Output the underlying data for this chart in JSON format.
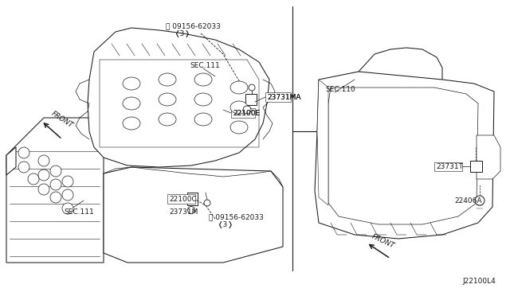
{
  "bg_color": "#ffffff",
  "line_color": "#1a1a1a",
  "diagram_id": "J22100L4",
  "labels": {
    "sec111_top": "SEC.111",
    "sec111_bot": "SEC.111",
    "sec110": "SEC.110",
    "bolt_top": "¸09156-62033\n   <3>",
    "bolt_bot": "¸09156-62033\n   <3>",
    "sensor_top_right": "23731MA",
    "sensor_top_left": "22100E",
    "sensor_bot_right": "22100C",
    "sensor_bot_left": "23731M",
    "sensor_right": "23731T",
    "sensor_right2": "22406A",
    "front_top": "FRONT",
    "front_bot": "FRONT"
  },
  "lw": 0.75
}
